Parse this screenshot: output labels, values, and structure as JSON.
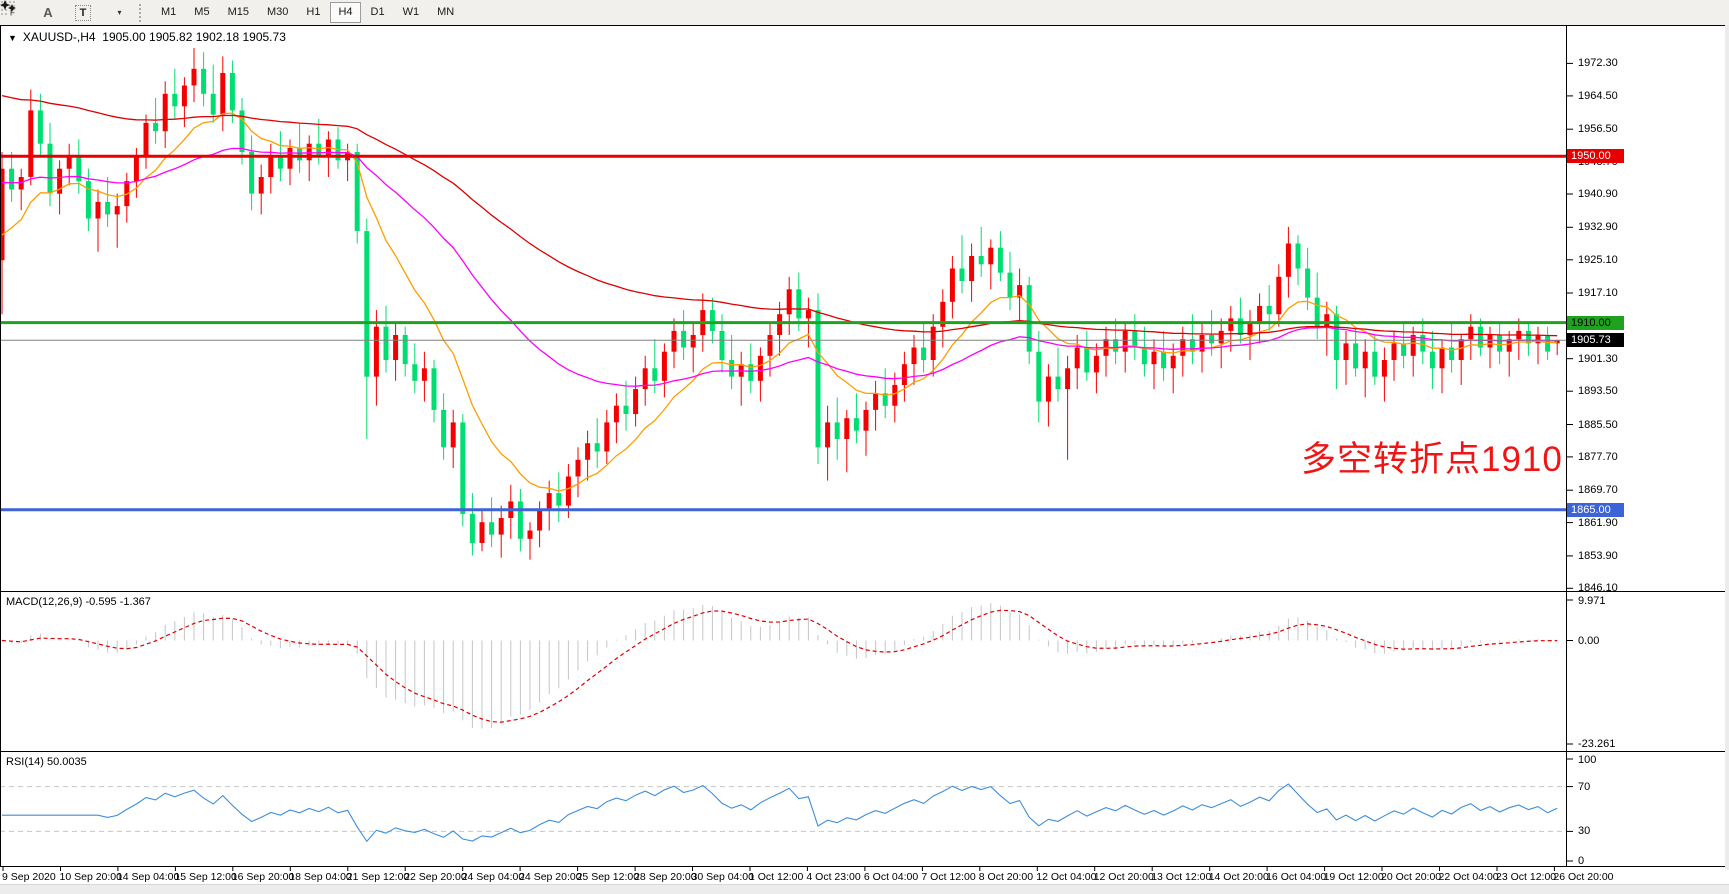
{
  "toolbar": {
    "tools": [
      {
        "name": "chart-grid-tool",
        "glyph": "F"
      },
      {
        "name": "font-tool",
        "glyph": "A"
      },
      {
        "name": "text-label-tool",
        "glyph": "T"
      },
      {
        "name": "arrows-tool",
        "glyph": "",
        "dropdown": "▾"
      }
    ],
    "timeframes": [
      "M1",
      "M5",
      "M15",
      "M30",
      "H1",
      "H4",
      "D1",
      "W1",
      "MN"
    ],
    "active_timeframe": "H4"
  },
  "chart": {
    "title": {
      "symbol": "XAUUSD-,H4",
      "open": "1905.00",
      "high": "1905.82",
      "low": "1902.18",
      "close": "1905.73"
    },
    "annotation": {
      "text": "多空转折点1910",
      "color": "#f11414"
    },
    "price_axis_labels": [
      "1972.30",
      "1964.50",
      "1956.50",
      "1948.70",
      "1940.90",
      "1932.90",
      "1925.10",
      "1917.10",
      "1909.30",
      "1901.30",
      "1893.50",
      "1885.50",
      "1877.70",
      "1869.70",
      "1861.90",
      "1853.90",
      "1846.10"
    ],
    "levels": [
      {
        "price": 1950.0,
        "label": "1950.00",
        "color": "#e60000",
        "text_color": "#ffffff",
        "width": 3
      },
      {
        "price": 1910.0,
        "label": "1910.00",
        "color": "#1fa31f",
        "text_color": "#000000",
        "width": 3
      },
      {
        "price": 1865.0,
        "label": "1865.00",
        "color": "#3c64d7",
        "text_color": "#ffffff",
        "width": 3
      }
    ],
    "current_price": {
      "value": 1905.73,
      "label": "1905.73",
      "line_color": "#808080",
      "badge_bg": "#000000",
      "badge_text": "#ffffff"
    },
    "time_axis_labels": [
      "9 Sep 2020",
      "10 Sep 20:00",
      "14 Sep 04:00",
      "15 Sep 12:00",
      "16 Sep 20:00",
      "18 Sep 04:00",
      "21 Sep 12:00",
      "22 Sep 20:00",
      "24 Sep 04:00",
      "24 Sep 20:00",
      "25 Sep 12:00",
      "28 Sep 20:00",
      "30 Sep 04:00",
      "1 Oct 12:00",
      "4 Oct 23:00",
      "6 Oct 04:00",
      "7 Oct 12:00",
      "8 Oct 20:00",
      "12 Oct 04:00",
      "12 Oct 20:00",
      "13 Oct 12:00",
      "14 Oct 20:00",
      "16 Oct 04:00",
      "19 Oct 12:00",
      "20 Oct 20:00",
      "22 Oct 04:00",
      "23 Oct 12:00",
      "26 Oct 20:00"
    ]
  },
  "chart_data": {
    "type": "candlestick",
    "symbol": "XAUUSD",
    "timeframe": "H4",
    "title": "XAUUSD-,H4 1905.00 1905.82 1902.18 1905.73",
    "ylim": [
      1845.7,
      1981.3
    ],
    "up_color": "#f50000",
    "down_color": "#00de72",
    "note": "Chinese color convention: red = bullish, green = bearish",
    "ohlc": [
      [
        1925,
        1951,
        1912,
        1947
      ],
      [
        1947,
        1951,
        1939,
        1942
      ],
      [
        1942,
        1947,
        1937,
        1945
      ],
      [
        1945,
        1966,
        1943,
        1961
      ],
      [
        1961,
        1965,
        1950,
        1953
      ],
      [
        1953,
        1958,
        1938,
        1941
      ],
      [
        1941,
        1949,
        1936,
        1947
      ],
      [
        1947,
        1953,
        1943,
        1950
      ],
      [
        1950,
        1954,
        1941,
        1944
      ],
      [
        1944,
        1947,
        1932,
        1935
      ],
      [
        1935,
        1942,
        1927,
        1939
      ],
      [
        1939,
        1945,
        1933,
        1936
      ],
      [
        1936,
        1941,
        1928,
        1938
      ],
      [
        1938,
        1946,
        1934,
        1944
      ],
      [
        1944,
        1952,
        1940,
        1950
      ],
      [
        1950,
        1960,
        1947,
        1958
      ],
      [
        1958,
        1964,
        1953,
        1956
      ],
      [
        1956,
        1968,
        1952,
        1965
      ],
      [
        1965,
        1971,
        1959,
        1962
      ],
      [
        1962,
        1969,
        1957,
        1967
      ],
      [
        1967,
        1976,
        1963,
        1971
      ],
      [
        1971,
        1975,
        1962,
        1965
      ],
      [
        1965,
        1972,
        1958,
        1960
      ],
      [
        1960,
        1974,
        1956,
        1970
      ],
      [
        1970,
        1973,
        1958,
        1961
      ],
      [
        1961,
        1964,
        1948,
        1951
      ],
      [
        1951,
        1955,
        1937,
        1941
      ],
      [
        1941,
        1948,
        1936,
        1945
      ],
      [
        1945,
        1953,
        1941,
        1950
      ],
      [
        1950,
        1956,
        1944,
        1947
      ],
      [
        1947,
        1954,
        1943,
        1952
      ],
      [
        1952,
        1958,
        1946,
        1949
      ],
      [
        1949,
        1955,
        1944,
        1953
      ],
      [
        1953,
        1959,
        1948,
        1950
      ],
      [
        1950,
        1956,
        1945,
        1954
      ],
      [
        1954,
        1957,
        1947,
        1949
      ],
      [
        1949,
        1953,
        1944,
        1951
      ],
      [
        1951,
        1953,
        1929,
        1932
      ],
      [
        1932,
        1935,
        1882,
        1897
      ],
      [
        1897,
        1913,
        1890,
        1909
      ],
      [
        1909,
        1914,
        1898,
        1901
      ],
      [
        1901,
        1910,
        1896,
        1907
      ],
      [
        1907,
        1909,
        1897,
        1900
      ],
      [
        1900,
        1905,
        1893,
        1896
      ],
      [
        1896,
        1903,
        1891,
        1899
      ],
      [
        1899,
        1901,
        1886,
        1889
      ],
      [
        1889,
        1893,
        1877,
        1880
      ],
      [
        1880,
        1889,
        1875,
        1886
      ],
      [
        1886,
        1888,
        1861,
        1864
      ],
      [
        1864,
        1869,
        1854,
        1857
      ],
      [
        1857,
        1865,
        1855,
        1862
      ],
      [
        1862,
        1868,
        1856,
        1859
      ],
      [
        1859,
        1866,
        1853.5,
        1863
      ],
      [
        1863,
        1871,
        1858,
        1867
      ],
      [
        1867,
        1870,
        1855,
        1858
      ],
      [
        1858,
        1862,
        1853,
        1860
      ],
      [
        1860,
        1867,
        1856,
        1865
      ],
      [
        1865,
        1872,
        1860,
        1869
      ],
      [
        1869,
        1874,
        1862,
        1866
      ],
      [
        1866,
        1876,
        1863,
        1873
      ],
      [
        1873,
        1880,
        1868,
        1877
      ],
      [
        1877,
        1884,
        1872,
        1881
      ],
      [
        1881,
        1887,
        1875,
        1879
      ],
      [
        1879,
        1889,
        1876,
        1886
      ],
      [
        1886,
        1893,
        1881,
        1890
      ],
      [
        1890,
        1896,
        1884,
        1888
      ],
      [
        1888,
        1897,
        1885,
        1894
      ],
      [
        1894,
        1902,
        1890,
        1899
      ],
      [
        1899,
        1906,
        1893,
        1896
      ],
      [
        1896,
        1905,
        1892,
        1903
      ],
      [
        1903,
        1911,
        1899,
        1908
      ],
      [
        1908,
        1913,
        1901,
        1904
      ],
      [
        1904,
        1910,
        1898,
        1907
      ],
      [
        1907,
        1917,
        1903,
        1913
      ],
      [
        1913,
        1916,
        1905,
        1908
      ],
      [
        1908,
        1912,
        1898,
        1901
      ],
      [
        1901,
        1907,
        1894,
        1897
      ],
      [
        1897,
        1903,
        1890,
        1900
      ],
      [
        1900,
        1905,
        1893,
        1896
      ],
      [
        1896,
        1904,
        1891,
        1902
      ],
      [
        1902,
        1910,
        1897,
        1907
      ],
      [
        1907,
        1915,
        1902,
        1912
      ],
      [
        1912,
        1921,
        1907,
        1918
      ],
      [
        1918,
        1922,
        1908,
        1911
      ],
      [
        1911,
        1916,
        1904,
        1913
      ],
      [
        1913,
        1917,
        1876,
        1880
      ],
      [
        1880,
        1890,
        1872,
        1886
      ],
      [
        1886,
        1892,
        1877,
        1882
      ],
      [
        1882,
        1889,
        1874,
        1887
      ],
      [
        1887,
        1893,
        1881,
        1884
      ],
      [
        1884,
        1891,
        1878,
        1889
      ],
      [
        1889,
        1896,
        1884,
        1893
      ],
      [
        1893,
        1899,
        1887,
        1890
      ],
      [
        1890,
        1898,
        1886,
        1895
      ],
      [
        1895,
        1903,
        1891,
        1900
      ],
      [
        1900,
        1907,
        1895,
        1904
      ],
      [
        1904,
        1910,
        1898,
        1901
      ],
      [
        1901,
        1912,
        1897,
        1909
      ],
      [
        1909,
        1918,
        1904,
        1915
      ],
      [
        1915,
        1926,
        1911,
        1923
      ],
      [
        1923,
        1931,
        1917,
        1920
      ],
      [
        1920,
        1929,
        1915,
        1926
      ],
      [
        1926,
        1933,
        1921,
        1924
      ],
      [
        1924,
        1930,
        1918,
        1928
      ],
      [
        1928,
        1932,
        1920,
        1922
      ],
      [
        1922,
        1927,
        1913,
        1916
      ],
      [
        1916,
        1923,
        1910,
        1919
      ],
      [
        1919,
        1921,
        1900,
        1903
      ],
      [
        1903,
        1908,
        1886,
        1891
      ],
      [
        1891,
        1900,
        1885,
        1897
      ],
      [
        1897,
        1904,
        1891,
        1894
      ],
      [
        1894,
        1902,
        1877,
        1899
      ],
      [
        1899,
        1907,
        1894,
        1904
      ],
      [
        1904,
        1908,
        1896,
        1898
      ],
      [
        1898,
        1905,
        1893,
        1902
      ],
      [
        1902,
        1909,
        1897,
        1906
      ],
      [
        1906,
        1911,
        1900,
        1903
      ],
      [
        1903,
        1910,
        1898,
        1908
      ],
      [
        1908,
        1912,
        1901,
        1904
      ],
      [
        1904,
        1909,
        1897,
        1900
      ],
      [
        1900,
        1906,
        1894,
        1903
      ],
      [
        1903,
        1908,
        1896,
        1899
      ],
      [
        1899,
        1905,
        1893,
        1902
      ],
      [
        1902,
        1909,
        1897,
        1906
      ],
      [
        1906,
        1912,
        1900,
        1903
      ],
      [
        1903,
        1910,
        1898,
        1907
      ],
      [
        1907,
        1913,
        1902,
        1905
      ],
      [
        1905,
        1911,
        1899,
        1908
      ],
      [
        1908,
        1914,
        1903,
        1911
      ],
      [
        1911,
        1916,
        1905,
        1907
      ],
      [
        1907,
        1913,
        1901,
        1910
      ],
      [
        1910,
        1917,
        1905,
        1914
      ],
      [
        1914,
        1919,
        1908,
        1912
      ],
      [
        1912,
        1924,
        1909,
        1921
      ],
      [
        1921,
        1933,
        1916,
        1929
      ],
      [
        1929,
        1931,
        1919,
        1923
      ],
      [
        1923,
        1928,
        1913,
        1916
      ],
      [
        1916,
        1922,
        1906,
        1909
      ],
      [
        1909,
        1915,
        1902,
        1912
      ],
      [
        1912,
        1914,
        1894,
        1901
      ],
      [
        1901,
        1908,
        1895,
        1905
      ],
      [
        1905,
        1909,
        1897,
        1899
      ],
      [
        1899,
        1906,
        1892,
        1903
      ],
      [
        1903,
        1907,
        1895,
        1897
      ],
      [
        1897,
        1904,
        1891,
        1901
      ],
      [
        1901,
        1908,
        1896,
        1905
      ],
      [
        1905,
        1910,
        1899,
        1902
      ],
      [
        1902,
        1909,
        1897,
        1907
      ],
      [
        1907,
        1911,
        1900,
        1903
      ],
      [
        1903,
        1908,
        1894,
        1899
      ],
      [
        1899,
        1906,
        1893,
        1904
      ],
      [
        1904,
        1910,
        1898,
        1901
      ],
      [
        1901,
        1907,
        1895,
        1906
      ],
      [
        1906,
        1912,
        1901,
        1909
      ],
      [
        1909,
        1911,
        1902,
        1904
      ],
      [
        1904,
        1909,
        1899,
        1907
      ],
      [
        1907,
        1910,
        1900,
        1903
      ],
      [
        1903,
        1908,
        1897,
        1906
      ],
      [
        1906,
        1911,
        1901,
        1908
      ],
      [
        1908,
        1910,
        1902,
        1905
      ],
      [
        1905,
        1909,
        1900,
        1907
      ],
      [
        1907,
        1909,
        1901,
        1903
      ],
      [
        1905.0,
        1905.82,
        1902.18,
        1905.73
      ]
    ],
    "moving_averages": [
      {
        "name": "ma-fast-orange",
        "color": "#ff9d00",
        "k": 0.16,
        "seed": 1928
      },
      {
        "name": "ma-mid-magenta",
        "color": "#ff00ff",
        "k": 0.05,
        "seed": 1943.5
      },
      {
        "name": "ma-slow-red",
        "color": "#dd0000",
        "k": 0.024,
        "seed": 1965
      }
    ],
    "macd": {
      "label": "MACD(12,26,9)",
      "current_values": "-0.595 -1.367",
      "axis_labels": [
        "9.971",
        "0.00",
        "-23.261"
      ],
      "range": [
        -23.261,
        9.971
      ],
      "hist_color": "#c4c4c4",
      "signal_color": "#e00000"
    },
    "rsi": {
      "label": "RSI(14)",
      "current_value": "50.0035",
      "axis_labels": [
        "100",
        "70",
        "30",
        "0"
      ],
      "levels": [
        70,
        30
      ],
      "range": [
        0,
        100
      ],
      "line_color": "#3d8edc",
      "level_color": "#c8c8c8"
    }
  }
}
